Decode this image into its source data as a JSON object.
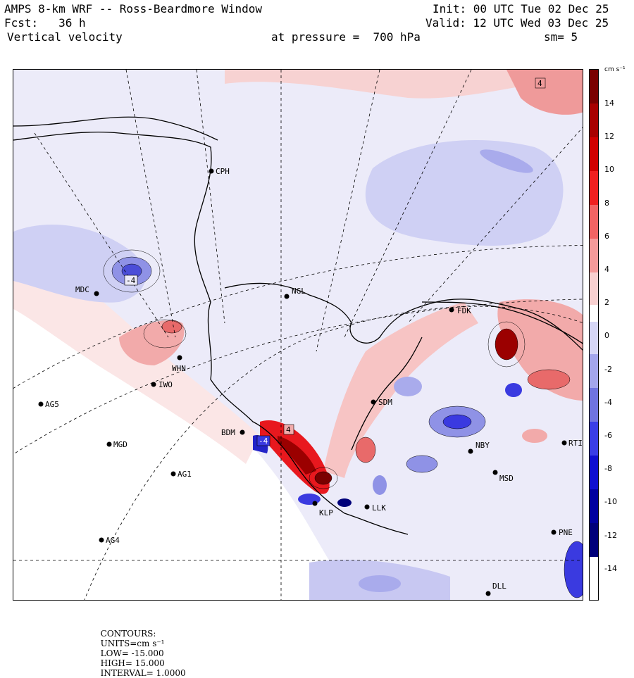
{
  "header": {
    "title": "AMPS 8-km WRF -- Ross-Beardmore Window",
    "forecast": "Fcst:   36 h",
    "field": "Vertical velocity",
    "pressure": "at pressure =  700 hPa",
    "init": "Init: 00 UTC Tue 02 Dec 25",
    "valid": "Valid: 12 UTC Wed 03 Dec 25",
    "smoothing": "sm= 5"
  },
  "stations": [
    {
      "id": "CPH",
      "label": "CPH"
    },
    {
      "id": "NGL",
      "label": "NGL"
    },
    {
      "id": "MDC",
      "label": "MDC"
    },
    {
      "id": "FDK",
      "label": "FDK"
    },
    {
      "id": "WHN",
      "label": "WHN"
    },
    {
      "id": "IWO",
      "label": "IWO"
    },
    {
      "id": "AG5",
      "label": "AG5"
    },
    {
      "id": "SDM",
      "label": "SDM"
    },
    {
      "id": "BDM",
      "label": "BDM"
    },
    {
      "id": "MGD",
      "label": "MGD"
    },
    {
      "id": "NBY",
      "label": "NBY"
    },
    {
      "id": "RTI",
      "label": "RTI"
    },
    {
      "id": "AG1",
      "label": "AG1"
    },
    {
      "id": "MSD",
      "label": "MSD"
    },
    {
      "id": "KLP",
      "label": "KLP"
    },
    {
      "id": "LLK",
      "label": "LLK"
    },
    {
      "id": "PNE",
      "label": "PNE"
    },
    {
      "id": "AG4",
      "label": "AG4"
    },
    {
      "id": "DLL",
      "label": "DLL"
    }
  ],
  "contour_labels": [
    "-4",
    "4",
    "4",
    "-4"
  ],
  "colorbar": {
    "unit": "cm s⁻¹",
    "ticks": [
      "14",
      "12",
      "10",
      "8",
      "6",
      "4",
      "2",
      "0",
      "-2",
      "-4",
      "-6",
      "-8",
      "-10",
      "-12",
      "-14"
    ],
    "colors": {
      "strong_up": "#7a0000",
      "up": "#e8181e",
      "weak_up": "#f7c4c4",
      "neutral": "#ffffff",
      "weak_down": "#c8c8f2",
      "down": "#3a3ae0",
      "strong_down": "#00007a"
    }
  },
  "footer": {
    "contours": "CONTOURS:",
    "units": "UNITS=cm s⁻¹",
    "low": "LOW= -15.000",
    "high": "HIGH= 15.000",
    "interval": "INTERVAL= 1.0000"
  }
}
